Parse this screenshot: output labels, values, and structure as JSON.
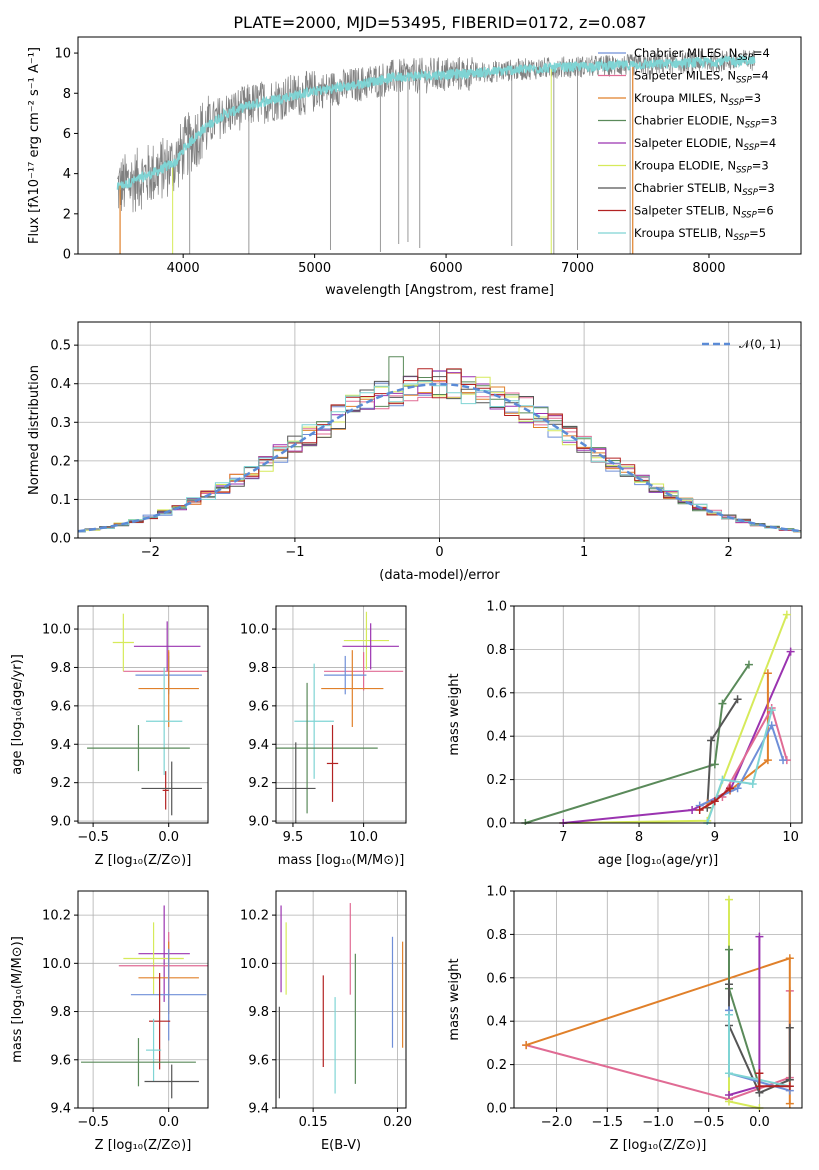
{
  "colors": {
    "Chabrier MILES": "#6f8fd8",
    "Salpeter MILES": "#e06b94",
    "Kroupa MILES": "#e0802a",
    "Chabrier ELODIE": "#5a8a5a",
    "Salpeter ELODIE": "#9a33b0",
    "Kroupa ELODIE": "#d6ea5a",
    "Chabrier STELIB": "#555555",
    "Salpeter STELIB": "#b22222",
    "Kroupa STELIB": "#7fd4d4",
    "spectrum": "#808080"
  },
  "chart_data": [
    {
      "type": "line",
      "title": "PLATE=2000, MJD=53495, FIBERID=0172, z=0.087",
      "xlabel": "wavelength [Angstrom, rest frame]",
      "ylabel": "Flux [fλ10⁻¹⁷ erg cm⁻² s⁻¹ A⁻¹]",
      "xlim": [
        3200,
        8700
      ],
      "ylim": [
        0,
        10.8
      ],
      "xticks": [
        "4000",
        "5000",
        "6000",
        "7000",
        "8000"
      ],
      "yticks": [
        "0",
        "2",
        "4",
        "6",
        "8",
        "10"
      ],
      "grid": false,
      "legend_position": "upper right",
      "legend": [
        {
          "model": "Chabrier MILES",
          "label": "Chabrier MILES, N",
          "sub": "SSP",
          "tail": "=4"
        },
        {
          "model": "Salpeter MILES",
          "label": "Salpeter MILES, N",
          "sub": "SSP",
          "tail": "=4"
        },
        {
          "model": "Kroupa MILES",
          "label": "Kroupa MILES, N",
          "sub": "SSP",
          "tail": "=3"
        },
        {
          "model": "Chabrier ELODIE",
          "label": "Chabrier ELODIE, N",
          "sub": "SSP",
          "tail": "=3"
        },
        {
          "model": "Salpeter ELODIE",
          "label": "Salpeter ELODIE, N",
          "sub": "SSP",
          "tail": "=4"
        },
        {
          "model": "Kroupa ELODIE",
          "label": "Kroupa ELODIE, N",
          "sub": "SSP",
          "tail": "=3"
        },
        {
          "model": "Chabrier STELIB",
          "label": "Chabrier STELIB, N",
          "sub": "SSP",
          "tail": "=3"
        },
        {
          "model": "Salpeter STELIB",
          "label": "Salpeter STELIB, N",
          "sub": "SSP",
          "tail": "=6"
        },
        {
          "model": "Kroupa STELIB",
          "label": "Kroupa STELIB, N",
          "sub": "SSP",
          "tail": "=5"
        }
      ],
      "continuum": [
        [
          3500,
          3.3
        ],
        [
          3650,
          3.7
        ],
        [
          3800,
          4.1
        ],
        [
          3950,
          4.6
        ],
        [
          4000,
          5.2
        ],
        [
          4150,
          6.2
        ],
        [
          4300,
          6.9
        ],
        [
          4500,
          7.4
        ],
        [
          4700,
          7.7
        ],
        [
          5000,
          8.1
        ],
        [
          5300,
          8.4
        ],
        [
          5600,
          8.8
        ],
        [
          5900,
          8.9
        ],
        [
          6200,
          9.0
        ],
        [
          6600,
          9.2
        ],
        [
          6900,
          9.3
        ],
        [
          7400,
          9.4
        ],
        [
          7800,
          9.5
        ],
        [
          8100,
          9.6
        ],
        [
          8350,
          9.65
        ]
      ],
      "spikes": [
        [
          4050,
          0
        ],
        [
          4500,
          0
        ],
        [
          5120,
          0.2
        ],
        [
          5500,
          0.1
        ],
        [
          5640,
          0.5
        ],
        [
          5710,
          0.6
        ],
        [
          5800,
          0.3
        ],
        [
          6500,
          0.4
        ],
        [
          6820,
          0
        ],
        [
          7000,
          0.2
        ],
        [
          7400,
          0
        ]
      ]
    },
    {
      "type": "histogram",
      "xlabel": "(data-model)/error",
      "ylabel": "Normed distribution",
      "xlim": [
        -2.5,
        2.5
      ],
      "ylim": [
        0,
        0.56
      ],
      "xticks": [
        "−2",
        "−1",
        "0",
        "1",
        "2"
      ],
      "yticks": [
        "0.0",
        "0.1",
        "0.2",
        "0.3",
        "0.4",
        "0.5"
      ],
      "grid": true,
      "legend": [
        "𝒩(0, 1)"
      ],
      "reference_curve": "normal(0,1)",
      "bin_width": 0.1,
      "outliers": [
        [
          0.05,
          0.535,
          "Salpeter ELODIE"
        ],
        [
          -0.3,
          0.47,
          "Chabrier ELODIE"
        ],
        [
          0.35,
          0.43,
          "Salpeter ELODIE"
        ],
        [
          -0.45,
          0.39,
          "Kroupa ELODIE"
        ],
        [
          0.55,
          0.42,
          "Chabrier MILES"
        ],
        [
          -0.6,
          0.37,
          "Kroupa ELODIE"
        ]
      ]
    },
    {
      "type": "scatter",
      "xlabel": "Z [log₁₀(Z/Z⊙)]",
      "ylabel": "age  [log₁₀(age/yr)]",
      "xlim": [
        -0.6,
        0.26
      ],
      "ylim": [
        8.99,
        10.12
      ],
      "xticks": [
        {
          "v": -0.5,
          "t": "−0.5"
        },
        {
          "v": 0.0,
          "t": "0.0"
        }
      ],
      "yticks": [
        {
          "v": 9.0,
          "t": "9.0"
        },
        {
          "v": 9.2,
          "t": "9.2"
        },
        {
          "v": 9.4,
          "t": "9.4"
        },
        {
          "v": 9.6,
          "t": "9.6"
        },
        {
          "v": 9.8,
          "t": "9.8"
        },
        {
          "v": 10.0,
          "t": "10.0"
        }
      ],
      "points": [
        {
          "m": "Kroupa ELODIE",
          "x": -0.3,
          "xe": 0.07,
          "y": 9.93,
          "ye": 0.15
        },
        {
          "m": "Salpeter ELODIE",
          "x": -0.01,
          "xe": 0.22,
          "y": 9.91,
          "ye": 0.13
        },
        {
          "m": "Salpeter MILES",
          "x": 0.0,
          "xe": 0.3,
          "y": 9.78,
          "ye": 0.1
        },
        {
          "m": "Chabrier MILES",
          "x": 0.0,
          "xe": 0.22,
          "y": 9.76,
          "ye": 0.1
        },
        {
          "m": "Kroupa MILES",
          "x": 0.0,
          "xe": 0.2,
          "y": 9.69,
          "ye": 0.2
        },
        {
          "m": "Kroupa STELIB",
          "x": -0.03,
          "xe": 0.12,
          "y": 9.52,
          "ye": 0.28
        },
        {
          "m": "Chabrier ELODIE",
          "x": -0.2,
          "xe": 0.34,
          "y": 9.38,
          "ye": 0.12
        },
        {
          "m": "Salpeter STELIB",
          "x": -0.02,
          "xe": 0.02,
          "y": 9.16,
          "ye": 0.1
        },
        {
          "m": "Chabrier STELIB",
          "x": 0.02,
          "xe": 0.2,
          "y": 9.17,
          "ye": 0.14
        }
      ]
    },
    {
      "type": "scatter",
      "xlabel": "mass [log₁₀(M/M⊙)]",
      "ylabel": "",
      "xlim": [
        9.38,
        10.3
      ],
      "ylim": [
        8.99,
        10.12
      ],
      "xticks": [
        {
          "v": 9.5,
          "t": "9.5"
        },
        {
          "v": 10.0,
          "t": "10.0"
        }
      ],
      "yticks": [
        {
          "v": 9.0,
          "t": "9.0"
        },
        {
          "v": 9.2,
          "t": "9.2"
        },
        {
          "v": 9.4,
          "t": "9.4"
        },
        {
          "v": 9.6,
          "t": "9.6"
        },
        {
          "v": 9.8,
          "t": "9.8"
        },
        {
          "v": 10.0,
          "t": "10.0"
        }
      ],
      "points": [
        {
          "m": "Kroupa ELODIE",
          "x": 10.02,
          "xe": 0.16,
          "y": 9.94,
          "ye": 0.15
        },
        {
          "m": "Salpeter ELODIE",
          "x": 10.05,
          "xe": 0.2,
          "y": 9.91,
          "ye": 0.12
        },
        {
          "m": "Salpeter MILES",
          "x": 10.0,
          "xe": 0.28,
          "y": 9.78,
          "ye": 0.1
        },
        {
          "m": "Chabrier MILES",
          "x": 9.87,
          "xe": 0.15,
          "y": 9.76,
          "ye": 0.1
        },
        {
          "m": "Kroupa MILES",
          "x": 9.92,
          "xe": 0.22,
          "y": 9.69,
          "ye": 0.2
        },
        {
          "m": "Kroupa STELIB",
          "x": 9.65,
          "xe": 0.14,
          "y": 9.52,
          "ye": 0.3
        },
        {
          "m": "Chabrier ELODIE",
          "x": 9.6,
          "xe": 0.5,
          "y": 9.38,
          "ye": 0.34
        },
        {
          "m": "Salpeter STELIB",
          "x": 9.78,
          "xe": 0.04,
          "y": 9.3,
          "ye": 0.2
        },
        {
          "m": "Chabrier STELIB",
          "x": 9.52,
          "xe": 0.14,
          "y": 9.17,
          "ye": 0.24
        }
      ]
    },
    {
      "type": "line",
      "xlabel": "age  [log₁₀(age/yr)]",
      "ylabel": "mass weight",
      "xlim": [
        6.35,
        10.15
      ],
      "ylim": [
        0,
        1.0
      ],
      "xticks": [
        {
          "v": 7,
          "t": "7"
        },
        {
          "v": 8,
          "t": "8"
        },
        {
          "v": 9,
          "t": "9"
        },
        {
          "v": 10,
          "t": "10"
        }
      ],
      "yticks": [
        {
          "v": 0.0,
          "t": "0.0"
        },
        {
          "v": 0.2,
          "t": "0.2"
        },
        {
          "v": 0.4,
          "t": "0.4"
        },
        {
          "v": 0.6,
          "t": "0.6"
        },
        {
          "v": 0.8,
          "t": "0.8"
        },
        {
          "v": 1.0,
          "t": "1.0"
        }
      ],
      "series": [
        {
          "m": "Chabrier ELODIE",
          "x": [
            6.5,
            9.0,
            9.1,
            9.45
          ],
          "y": [
            0.0,
            0.27,
            0.55,
            0.73
          ]
        },
        {
          "m": "Chabrier STELIB",
          "x": [
            8.9,
            8.95,
            9.3
          ],
          "y": [
            0.07,
            0.38,
            0.57
          ]
        },
        {
          "m": "Kroupa ELODIE",
          "x": [
            7.0,
            8.9,
            9.95
          ],
          "y": [
            0.0,
            0.01,
            0.96
          ]
        },
        {
          "m": "Salpeter ELODIE",
          "x": [
            7.0,
            8.7,
            9.2,
            10.0
          ],
          "y": [
            0.0,
            0.06,
            0.15,
            0.79
          ]
        },
        {
          "m": "Kroupa MILES",
          "x": [
            8.9,
            9.2,
            9.7,
            9.7
          ],
          "y": [
            0.09,
            0.15,
            0.29,
            0.69
          ]
        },
        {
          "m": "Salpeter MILES",
          "x": [
            9.1,
            9.75,
            9.95
          ],
          "y": [
            0.12,
            0.53,
            0.29
          ]
        },
        {
          "m": "Chabrier MILES",
          "x": [
            8.8,
            9.3,
            9.75,
            9.9
          ],
          "y": [
            0.08,
            0.16,
            0.45,
            0.29
          ]
        },
        {
          "m": "Kroupa STELIB",
          "x": [
            8.9,
            9.1,
            9.5,
            9.75
          ],
          "y": [
            0.0,
            0.2,
            0.18,
            0.52
          ]
        },
        {
          "m": "Salpeter STELIB",
          "x": [
            8.8,
            9.0,
            9.2
          ],
          "y": [
            0.06,
            0.1,
            0.16
          ]
        }
      ]
    },
    {
      "type": "scatter",
      "xlabel": "Z [log₁₀(Z/Z⊙)]",
      "ylabel": "mass [log₁₀(M/M⊙)]",
      "xlim": [
        -0.6,
        0.26
      ],
      "ylim": [
        9.4,
        10.3
      ],
      "xticks": [
        {
          "v": -0.5,
          "t": "−0.5"
        },
        {
          "v": 0.0,
          "t": "0.0"
        }
      ],
      "yticks": [
        {
          "v": 9.4,
          "t": "9.4"
        },
        {
          "v": 9.6,
          "t": "9.6"
        },
        {
          "v": 9.8,
          "t": "9.8"
        },
        {
          "v": 10.0,
          "t": "10.0"
        },
        {
          "v": 10.2,
          "t": "10.2"
        }
      ],
      "points": [
        {
          "m": "Salpeter ELODIE",
          "x": -0.03,
          "xe": 0.17,
          "y": 10.04,
          "ye": 0.2
        },
        {
          "m": "Kroupa ELODIE",
          "x": -0.1,
          "xe": 0.2,
          "y": 10.02,
          "ye": 0.15
        },
        {
          "m": "Salpeter MILES",
          "x": 0.0,
          "xe": 0.33,
          "y": 9.99,
          "ye": 0.14
        },
        {
          "m": "Kroupa MILES",
          "x": 0.0,
          "xe": 0.2,
          "y": 9.94,
          "ye": 0.15
        },
        {
          "m": "Chabrier MILES",
          "x": 0.0,
          "xe": 0.25,
          "y": 9.87,
          "ye": 0.19
        },
        {
          "m": "Salpeter STELIB",
          "x": -0.06,
          "xe": 0.07,
          "y": 9.76,
          "ye": 0.2
        },
        {
          "m": "Kroupa STELIB",
          "x": -0.1,
          "xe": 0.05,
          "y": 9.64,
          "ye": 0.13
        },
        {
          "m": "Chabrier ELODIE",
          "x": -0.2,
          "xe": 0.38,
          "y": 9.59,
          "ye": 0.1
        },
        {
          "m": "Chabrier STELIB",
          "x": 0.02,
          "xe": 0.18,
          "y": 9.51,
          "ye": 0.07
        }
      ]
    },
    {
      "type": "scatter",
      "xlabel": "E(B-V)",
      "ylabel": "",
      "xlim": [
        0.128,
        0.205
      ],
      "ylim": [
        9.4,
        10.3
      ],
      "xticks": [
        {
          "v": 0.15,
          "t": "0.15"
        },
        {
          "v": 0.2,
          "t": "0.20"
        }
      ],
      "yticks": [
        {
          "v": 9.4,
          "t": "9.4"
        },
        {
          "v": 9.6,
          "t": "9.6"
        },
        {
          "v": 9.8,
          "t": "9.8"
        },
        {
          "v": 10.0,
          "t": "10.0"
        },
        {
          "v": 10.2,
          "t": "10.2"
        }
      ],
      "points": [
        {
          "m": "Salpeter ELODIE",
          "x": 0.131,
          "y": 10.06,
          "ye": 0.18
        },
        {
          "m": "Kroupa ELODIE",
          "x": 0.134,
          "y": 10.02,
          "ye": 0.15
        },
        {
          "m": "Chabrier STELIB",
          "x": 0.13,
          "y": 9.63,
          "ye": 0.19
        },
        {
          "m": "Salpeter STELIB",
          "x": 0.156,
          "y": 9.76,
          "ye": 0.19
        },
        {
          "m": "Kroupa STELIB",
          "x": 0.163,
          "y": 9.66,
          "ye": 0.2
        },
        {
          "m": "Salpeter MILES",
          "x": 0.172,
          "y": 10.06,
          "ye": 0.19
        },
        {
          "m": "Chabrier ELODIE",
          "x": 0.175,
          "y": 9.77,
          "ye": 0.27
        },
        {
          "m": "Chabrier MILES",
          "x": 0.197,
          "y": 9.88,
          "ye": 0.23
        },
        {
          "m": "Kroupa MILES",
          "x": 0.203,
          "y": 9.87,
          "ye": 0.22
        }
      ]
    },
    {
      "type": "line",
      "xlabel": "Z [log₁₀(Z/Z⊙)]",
      "ylabel": "mass weight",
      "xlim": [
        -2.42,
        0.42
      ],
      "ylim": [
        0,
        1.0
      ],
      "xticks": [
        {
          "v": -2.0,
          "t": "−2.0"
        },
        {
          "v": -1.5,
          "t": "−1.5"
        },
        {
          "v": -1.0,
          "t": "−1.0"
        },
        {
          "v": -0.5,
          "t": "−0.5"
        },
        {
          "v": 0.0,
          "t": "0.0"
        }
      ],
      "yticks": [
        {
          "v": 0.0,
          "t": "0.0"
        },
        {
          "v": 0.2,
          "t": "0.2"
        },
        {
          "v": 0.4,
          "t": "0.4"
        },
        {
          "v": 0.6,
          "t": "0.6"
        },
        {
          "v": 0.8,
          "t": "0.8"
        },
        {
          "v": 1.0,
          "t": "1.0"
        }
      ],
      "series": [
        {
          "m": "Salpeter MILES",
          "x": [
            -2.3,
            -0.3,
            0.3,
            0.3
          ],
          "y": [
            0.29,
            0.04,
            0.14,
            0.54
          ]
        },
        {
          "m": "Kroupa MILES",
          "x": [
            -2.3,
            0.3,
            0.3
          ],
          "y": [
            0.29,
            0.69,
            0.02
          ]
        },
        {
          "m": "Kroupa ELODIE",
          "x": [
            -0.3,
            -0.3,
            0.0
          ],
          "y": [
            0.96,
            0.03,
            0.0
          ]
        },
        {
          "m": "Chabrier ELODIE",
          "x": [
            -0.3,
            -0.3,
            0.0
          ],
          "y": [
            0.73,
            0.55,
            0.1
          ]
        },
        {
          "m": "Salpeter ELODIE",
          "x": [
            0.0,
            0.0,
            -0.3
          ],
          "y": [
            0.79,
            0.1,
            0.06
          ]
        },
        {
          "m": "Chabrier STELIB",
          "x": [
            -0.3,
            -0.3,
            0.0,
            0.3,
            0.3
          ],
          "y": [
            0.57,
            0.38,
            0.07,
            0.13,
            0.37
          ]
        },
        {
          "m": "Chabrier MILES",
          "x": [
            -0.3,
            -0.3,
            0.3
          ],
          "y": [
            0.45,
            0.16,
            0.08
          ]
        },
        {
          "m": "Kroupa STELIB",
          "x": [
            -0.3,
            -0.3,
            0.3
          ],
          "y": [
            0.43,
            0.16,
            0.1
          ]
        },
        {
          "m": "Salpeter STELIB",
          "x": [
            0.0,
            0.0,
            0.3
          ],
          "y": [
            0.16,
            0.1,
            0.1
          ]
        }
      ]
    }
  ]
}
